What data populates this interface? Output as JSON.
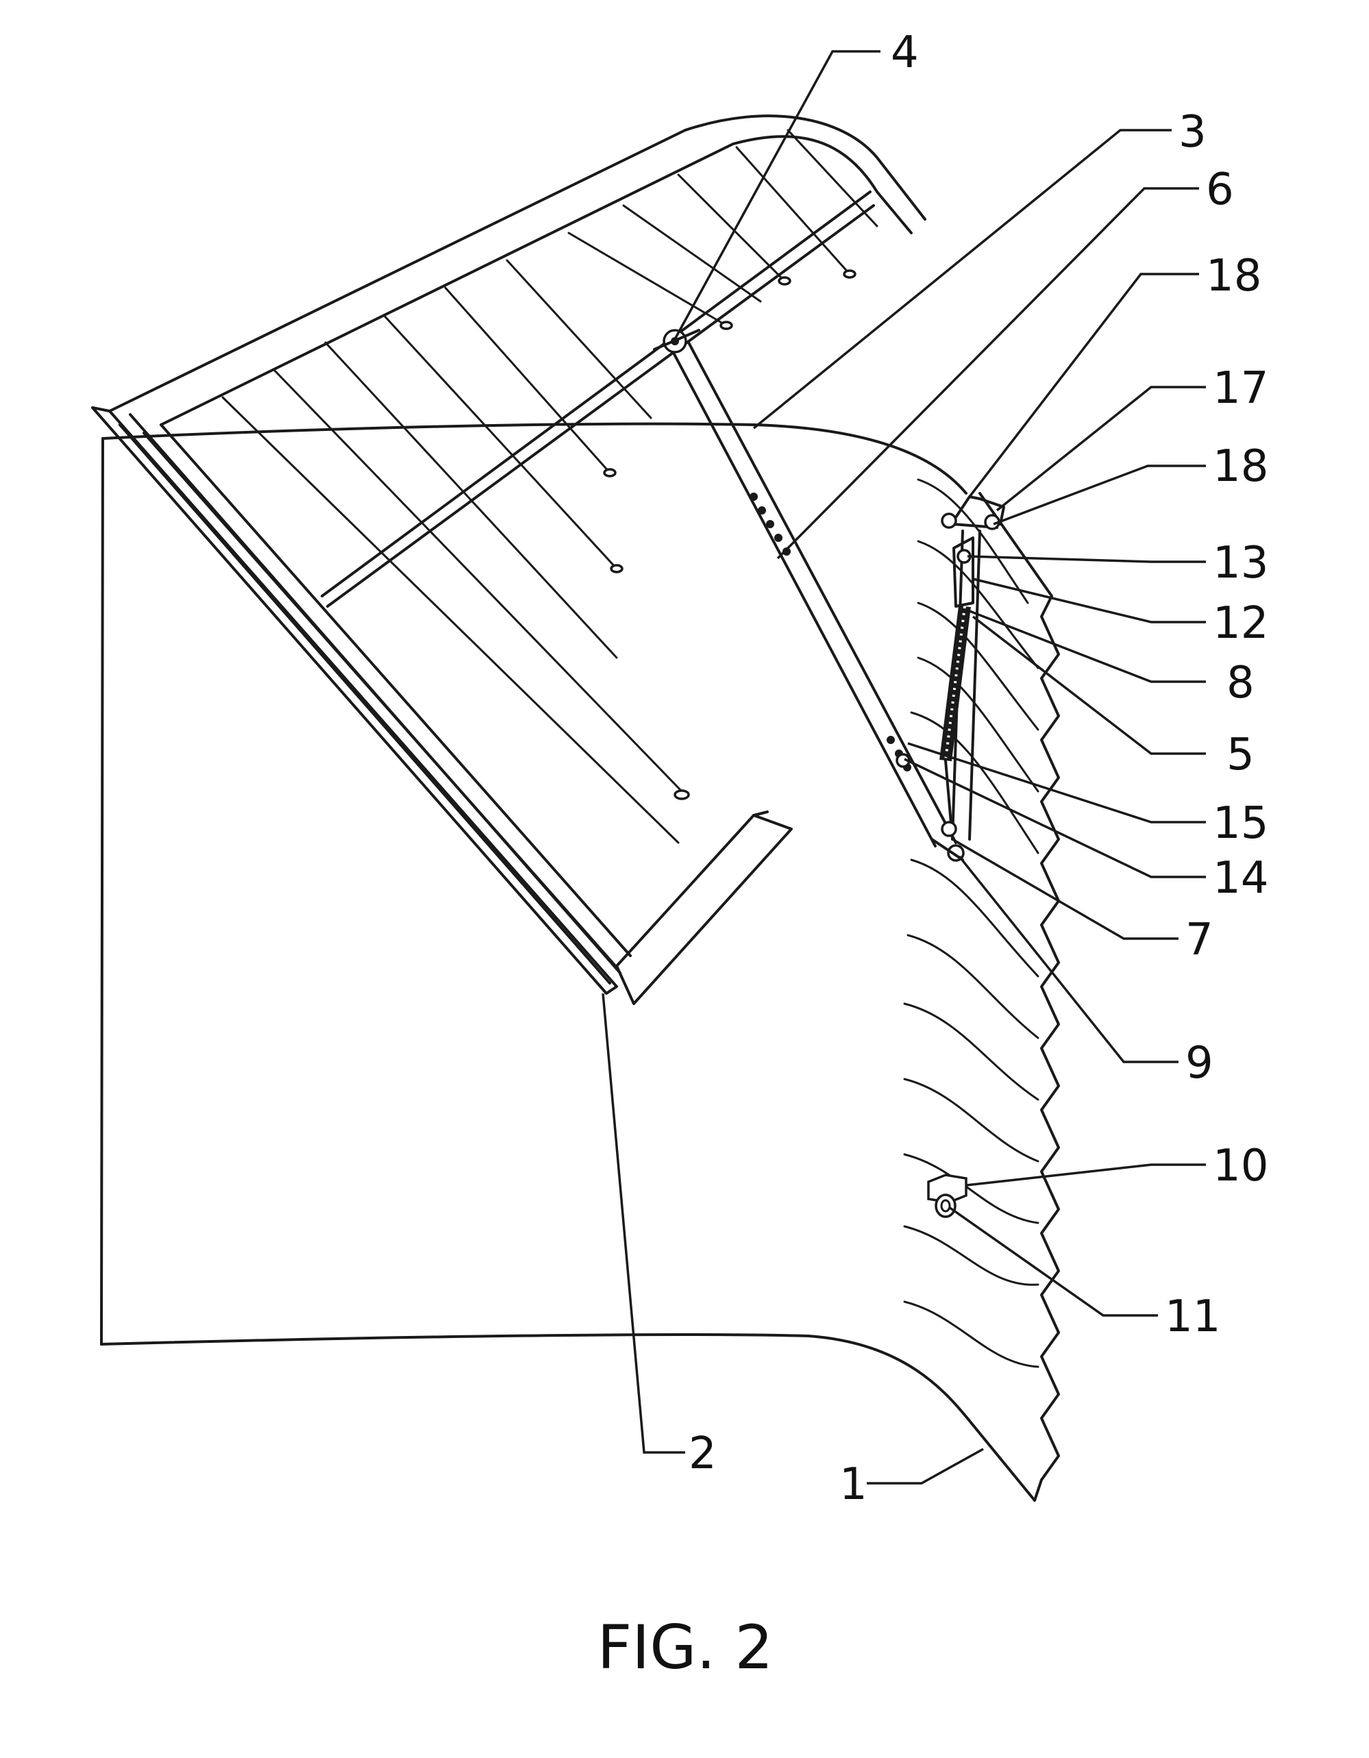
{
  "figure": {
    "caption": "FIG. 2",
    "reference_numerals": [
      {
        "id": "num-1",
        "text": "1"
      },
      {
        "id": "num-2",
        "text": "2"
      },
      {
        "id": "num-3",
        "text": "3"
      },
      {
        "id": "num-4",
        "text": "4"
      },
      {
        "id": "num-5",
        "text": "5"
      },
      {
        "id": "num-6",
        "text": "6"
      },
      {
        "id": "num-7",
        "text": "7"
      },
      {
        "id": "num-8",
        "text": "8"
      },
      {
        "id": "num-9",
        "text": "9"
      },
      {
        "id": "num-10",
        "text": "10"
      },
      {
        "id": "num-11",
        "text": "11"
      },
      {
        "id": "num-12",
        "text": "12"
      },
      {
        "id": "num-13",
        "text": "13"
      },
      {
        "id": "num-14",
        "text": "14"
      },
      {
        "id": "num-15",
        "text": "15"
      },
      {
        "id": "num-17",
        "text": "17"
      },
      {
        "id": "num-18a",
        "text": "18"
      },
      {
        "id": "num-18b",
        "text": "18"
      }
    ]
  }
}
